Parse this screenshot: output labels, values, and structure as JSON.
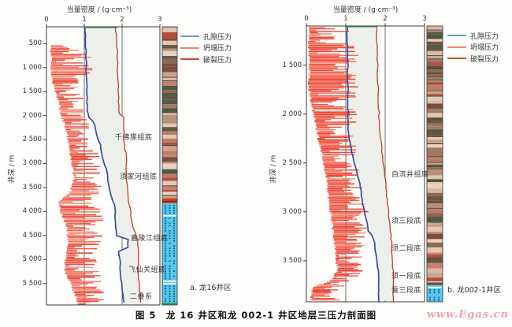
{
  "figure": {
    "caption": "图 5　龙 16 井区和龙 002-1 井区地层三压力剖面图",
    "watermark": "www.Egas.cn"
  },
  "legend": {
    "items": [
      {
        "label": "孔隙压力",
        "color": "#8095b8"
      },
      {
        "label": "坍塌压力",
        "color": "#f0836e"
      },
      {
        "label": "破裂压力",
        "color": "#d2473a"
      }
    ]
  },
  "colors": {
    "pore": "#3a4aa0",
    "collapse": "#ee4a38",
    "collapse_light": "#f5836c",
    "fracture": "#c83a30",
    "window_fill": "#edf0ea",
    "grid": "#5a5a52",
    "box": "#3c3c3c",
    "green_top": "#2aa05a",
    "litho_clastic": [
      "#c8a58a",
      "#8a6a52",
      "#e8d2c2",
      "#b05040",
      "#5e5944",
      "#dab9a6",
      "#c9806c",
      "#e3c5b2",
      "#7c4c3c",
      "#4e5842",
      "#c07a66",
      "#decab6",
      "#9c7c64",
      "#b89078"
    ],
    "litho_separator": "#3c3830",
    "litho_carbonate_base": "#55c8ea",
    "litho_carbonate_dash": "#14629e",
    "litho_red_band": "#cc3a28",
    "litho_green_base": "#2f9355"
  },
  "chart_data": [
    {
      "type": "line",
      "title": "当量密度 / (g·cm⁻³)",
      "ylabel": "井深 / m",
      "sub_caption": "a. 龙16井区",
      "xlim": [
        0,
        3
      ],
      "xticks": [
        0,
        1,
        2,
        3
      ],
      "depth_range": [
        150,
        5950
      ],
      "depth_ticks": [
        500,
        1000,
        1500,
        2000,
        2500,
        3000,
        3500,
        4000,
        4500,
        5000,
        5500
      ],
      "series": [
        {
          "name": "孔隙压力",
          "points": [
            [
              150,
              1.02
            ],
            [
              600,
              1.04
            ],
            [
              1200,
              1.06
            ],
            [
              1900,
              1.08
            ],
            [
              2050,
              1.12
            ],
            [
              2150,
              1.27
            ],
            [
              2350,
              1.3
            ],
            [
              2500,
              1.38
            ],
            [
              2650,
              1.44
            ],
            [
              2800,
              1.45
            ],
            [
              3000,
              1.52
            ],
            [
              3150,
              1.6
            ],
            [
              3350,
              1.62
            ],
            [
              3550,
              1.66
            ],
            [
              3700,
              1.72
            ],
            [
              3850,
              1.8
            ],
            [
              4100,
              1.82
            ],
            [
              4400,
              1.84
            ],
            [
              4520,
              1.86
            ],
            [
              4560,
              2.16
            ],
            [
              4760,
              2.16
            ],
            [
              4800,
              1.9
            ],
            [
              5000,
              1.94
            ],
            [
              5300,
              1.96
            ],
            [
              5600,
              2.0
            ],
            [
              5800,
              2.02
            ],
            [
              5950,
              2.08
            ]
          ]
        },
        {
          "name": "坍塌压力",
          "envelope": [
            [
              550,
              0.08,
              0.6
            ],
            [
              650,
              0.08,
              1.1
            ],
            [
              800,
              0.1,
              1.2
            ],
            [
              1000,
              0.08,
              1.45
            ],
            [
              1150,
              0.1,
              1.1
            ],
            [
              1400,
              0.15,
              1.0
            ],
            [
              1700,
              0.3,
              1.05
            ],
            [
              2000,
              0.35,
              1.1
            ],
            [
              2300,
              0.5,
              1.15
            ],
            [
              2600,
              0.55,
              1.2
            ],
            [
              2800,
              0.6,
              1.4
            ],
            [
              3000,
              0.65,
              1.45
            ],
            [
              3300,
              0.7,
              1.5
            ],
            [
              3600,
              0.6,
              1.45
            ],
            [
              3800,
              0.3,
              1.4
            ],
            [
              4000,
              0.35,
              1.5
            ],
            [
              4300,
              0.5,
              1.55
            ],
            [
              4600,
              0.55,
              1.5
            ],
            [
              4900,
              0.5,
              1.45
            ],
            [
              5200,
              0.45,
              1.5
            ],
            [
              5500,
              0.6,
              1.45
            ],
            [
              5700,
              0.7,
              1.55
            ],
            [
              5900,
              0.8,
              1.5
            ]
          ]
        },
        {
          "name": "破裂压力",
          "points": [
            [
              150,
              1.82
            ],
            [
              400,
              1.86
            ],
            [
              900,
              1.88
            ],
            [
              1500,
              1.9
            ],
            [
              1960,
              1.92
            ],
            [
              2010,
              2.04
            ],
            [
              2300,
              2.04
            ],
            [
              2600,
              2.06
            ],
            [
              2900,
              2.12
            ],
            [
              3100,
              2.1
            ],
            [
              3400,
              2.12
            ],
            [
              3700,
              2.16
            ],
            [
              3900,
              2.2
            ],
            [
              4100,
              2.24
            ],
            [
              4350,
              2.3
            ],
            [
              4520,
              2.38
            ],
            [
              4600,
              2.42
            ],
            [
              4900,
              2.44
            ],
            [
              5100,
              2.42
            ],
            [
              5400,
              2.44
            ],
            [
              5700,
              2.47
            ],
            [
              5950,
              2.5
            ]
          ]
        }
      ],
      "green_top_segment": [
        1.0,
        1.88
      ],
      "annotations": [
        {
          "label": "千佛崖组底",
          "depth": 2430
        },
        {
          "label": "须家河组底",
          "depth": 3250
        },
        {
          "label": "嘉陵江组底",
          "depth": 4530
        },
        {
          "label": "飞仙关组底",
          "depth": 5180
        },
        {
          "label": "二叠系",
          "depth": 5750
        }
      ],
      "lithology_sections": [
        {
          "type": "clastic",
          "from": 150,
          "to": 3730
        },
        {
          "type": "red",
          "from": 3730,
          "to": 3830
        },
        {
          "type": "carbonate",
          "from": 3830,
          "to": 5910
        },
        {
          "type": "green",
          "from": 5910,
          "to": 5950
        }
      ]
    },
    {
      "type": "line",
      "title": "当量密度 / (g·cm⁻³)",
      "ylabel": "井深 / m",
      "sub_caption": "b. 龙002-1井区",
      "xlim": [
        0,
        3
      ],
      "xticks": [
        0,
        1,
        2,
        3
      ],
      "depth_range": [
        1100,
        3920
      ],
      "depth_ticks": [
        1500,
        2000,
        2500,
        3000,
        3500
      ],
      "series": [
        {
          "name": "孔隙压力",
          "points": [
            [
              1100,
              1.03
            ],
            [
              1500,
              1.05
            ],
            [
              2150,
              1.06
            ],
            [
              2300,
              1.1
            ],
            [
              2450,
              1.18
            ],
            [
              2600,
              1.28
            ],
            [
              2750,
              1.37
            ],
            [
              2900,
              1.42
            ],
            [
              3000,
              1.47
            ],
            [
              3100,
              1.54
            ],
            [
              3200,
              1.58
            ],
            [
              3260,
              1.7
            ],
            [
              3350,
              1.74
            ],
            [
              3450,
              1.78
            ],
            [
              3600,
              1.82
            ],
            [
              3750,
              1.83
            ],
            [
              3920,
              1.84
            ]
          ]
        },
        {
          "name": "坍塌压力",
          "envelope": [
            [
              1100,
              0.05,
              1.25
            ],
            [
              1300,
              0.02,
              1.3
            ],
            [
              1500,
              0.05,
              1.35
            ],
            [
              1700,
              0.02,
              1.3
            ],
            [
              1900,
              0.1,
              1.35
            ],
            [
              2100,
              0.2,
              1.3
            ],
            [
              2300,
              0.3,
              1.25
            ],
            [
              2500,
              0.4,
              1.3
            ],
            [
              2700,
              0.5,
              1.4
            ],
            [
              2900,
              0.55,
              1.5
            ],
            [
              3050,
              0.6,
              1.65
            ],
            [
              3200,
              0.65,
              1.55
            ],
            [
              3400,
              0.7,
              1.5
            ],
            [
              3600,
              0.75,
              1.45
            ],
            [
              3700,
              0.6,
              1.3
            ],
            [
              3780,
              0.1,
              0.9
            ],
            [
              3900,
              0.1,
              0.85
            ]
          ]
        },
        {
          "name": "破裂压力",
          "points": [
            [
              1100,
              1.78
            ],
            [
              1400,
              1.8
            ],
            [
              1900,
              1.83
            ],
            [
              2200,
              1.87
            ],
            [
              2450,
              1.93
            ],
            [
              2600,
              1.98
            ],
            [
              2800,
              2.03
            ],
            [
              3000,
              2.08
            ],
            [
              3150,
              2.13
            ],
            [
              3300,
              2.16
            ],
            [
              3500,
              2.19
            ],
            [
              3920,
              2.21
            ]
          ]
        }
      ],
      "green_top_segment": [
        1.0,
        1.8
      ],
      "annotations": [
        {
          "label": "自流井组底",
          "depth": 2600
        },
        {
          "label": "须三段底",
          "depth": 3080
        },
        {
          "label": "须二段底",
          "depth": 3360
        },
        {
          "label": "须一段底",
          "depth": 3640
        },
        {
          "label": "雷三段底",
          "depth": 3790
        }
      ],
      "lithology_sections": [
        {
          "type": "clastic",
          "from": 1100,
          "to": 3750
        },
        {
          "type": "carbonate",
          "from": 3750,
          "to": 3920
        }
      ]
    }
  ]
}
